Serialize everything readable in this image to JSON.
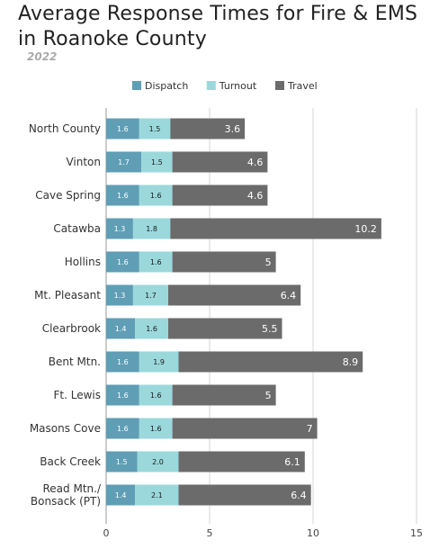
{
  "header": {
    "title": "Average Response Times for Fire & EMS in Roanoke County",
    "subtitle": "2022"
  },
  "chart_data": {
    "type": "bar",
    "orientation": "horizontal",
    "stacked": true,
    "title": "Average Response Times for Fire & EMS in Roanoke County",
    "subtitle": "2022",
    "xlabel": "",
    "ylabel": "",
    "xlim": [
      0,
      15
    ],
    "x_ticks": [
      0,
      5,
      10,
      15
    ],
    "grid": "vertical",
    "legend_position": "top",
    "categories": [
      "North County",
      "Vinton",
      "Cave Spring",
      "Catawba",
      "Hollins",
      "Mt. Pleasant",
      "Clearbrook",
      "Bent Mtn.",
      "Ft. Lewis",
      "Masons Cove",
      "Back Creek",
      "Read Mtn./ Bonsack (PT)"
    ],
    "series": [
      {
        "name": "Dispatch",
        "color": "#5f9eb5",
        "values": [
          1.6,
          1.7,
          1.6,
          1.3,
          1.6,
          1.3,
          1.4,
          1.6,
          1.6,
          1.6,
          1.5,
          1.4
        ],
        "labels": [
          "1.6",
          "1.7",
          "1.6",
          "1.3",
          "1.6",
          "1.3",
          "1.4",
          "1.6",
          "1.6",
          "1.6",
          "1.5",
          "1.4"
        ]
      },
      {
        "name": "Turnout",
        "color": "#9ad8dc",
        "values": [
          1.5,
          1.5,
          1.6,
          1.8,
          1.6,
          1.7,
          1.6,
          1.9,
          1.6,
          1.6,
          2.0,
          2.1
        ],
        "labels": [
          "1.5",
          "1.5",
          "1.6",
          "1.8",
          "1.6",
          "1.7",
          "1.6",
          "1.9",
          "1.6",
          "1.6",
          "2.0",
          "2.1"
        ]
      },
      {
        "name": "Travel",
        "color": "#6b6b6b",
        "values": [
          3.6,
          4.6,
          4.6,
          10.2,
          5,
          6.4,
          5.5,
          8.9,
          5,
          7,
          6.1,
          6.4
        ],
        "labels": [
          "3.6",
          "4.6",
          "4.6",
          "10.2",
          "5",
          "6.4",
          "5.5",
          "8.9",
          "5",
          "7",
          "6.1",
          "6.4"
        ]
      }
    ]
  }
}
